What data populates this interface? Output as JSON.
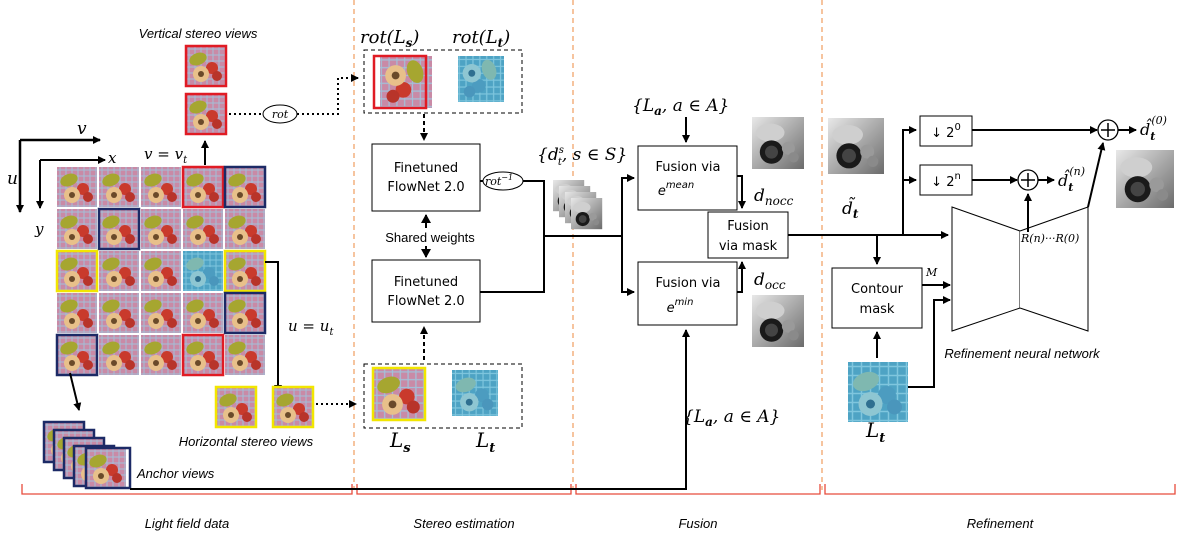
{
  "colors": {
    "red_frame": "#e01b24",
    "yellow_frame": "#f2e600",
    "navy_frame": "#1c2a66",
    "divider": "#f0a56b",
    "bracket": "#e74c3c"
  },
  "light_field": {
    "top_label": "Vertical stereo views",
    "horizontal_label": "Horizontal stereo views",
    "anchor_label": "Anchor views",
    "axis_v": "v",
    "axis_u": "u",
    "axis_x": "x",
    "axis_y": "y",
    "v_eq": "v = v",
    "v_eq_sub": "t",
    "u_eq": "u = u",
    "u_eq_sub": "t",
    "rot_label": "rot"
  },
  "stereo": {
    "rot_ls": "rot(L",
    "rot_ls_sub": "s",
    "rot_lt": "rot(L",
    "rot_lt_sub": "t",
    "flownet_line1": "Finetuned",
    "flownet_line2": "FlowNet 2.0",
    "shared_weights": "Shared weights",
    "rot_inv": "rot",
    "rot_inv_sup": "−1",
    "ls": "L",
    "ls_sub": "s",
    "lt": "L",
    "lt_sub": "t",
    "ds_set": "{d",
    "ds_sup": "s",
    "ds_sub": "t",
    "ds_rest": ", s ∈ S}"
  },
  "fusion": {
    "la_set_top": "{L",
    "la_sub": "a",
    "la_rest": ", a ∈ A}",
    "mean_line1": "Fusion via",
    "mean_line2": "e",
    "mean_sup": "mean",
    "min_line1": "Fusion via",
    "min_line2": "e",
    "min_sup": "min",
    "mask_line1": "Fusion",
    "mask_line2": "via mask",
    "d_nocc": "d",
    "d_nocc_sub": "nocc",
    "d_occ": "d",
    "d_occ_sub": "occ"
  },
  "refinement": {
    "down0": "↓ 2",
    "down0_sup": "0",
    "downn": "↓ 2",
    "downn_sup": "n",
    "dtilde": "d̃",
    "dtilde_sub": "t",
    "dhat0": "d̂",
    "dhat0_sub": "t",
    "dhat0_sup": "(0)",
    "dhatn": "d̂",
    "dhatn_sub": "t",
    "dhatn_sup": "(n)",
    "contour_line1": "Contour",
    "contour_line2": "mask",
    "m_label": "M",
    "r_label": "R(n)···R(0)",
    "network_label": "Refinement neural network",
    "lt": "L",
    "lt_sub": "t"
  },
  "sections": [
    "Light field data",
    "Stereo estimation",
    "Fusion",
    "Refinement"
  ]
}
